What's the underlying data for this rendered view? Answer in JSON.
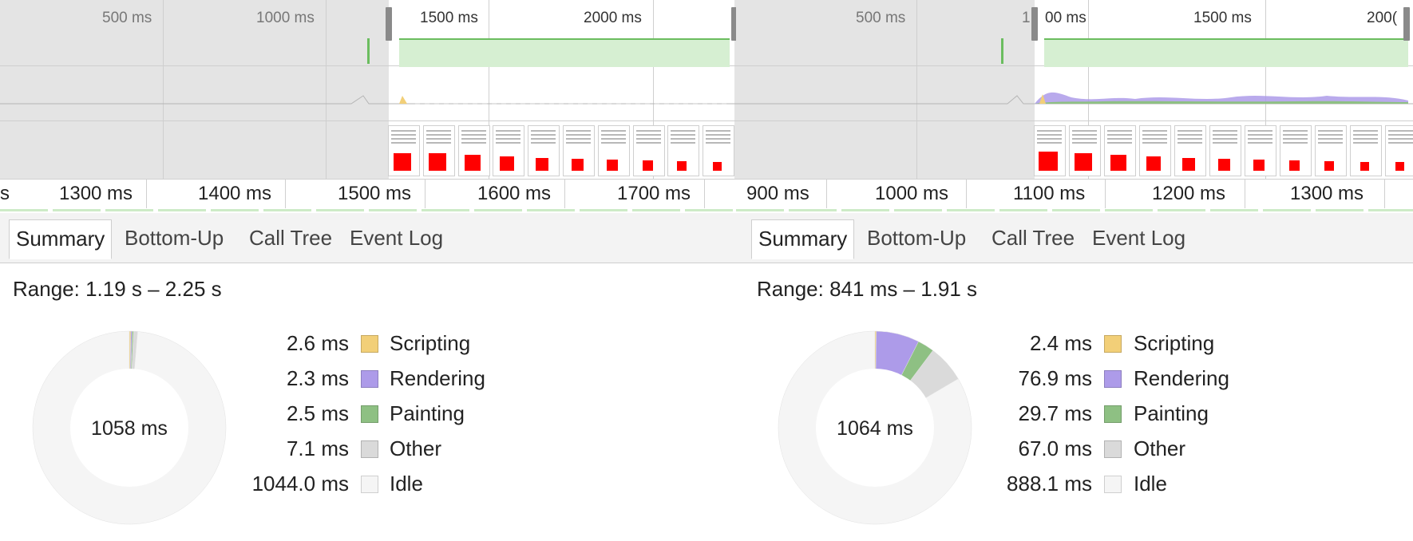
{
  "colors": {
    "scripting": "#f2cf78",
    "rendering": "#ad9be9",
    "painting": "#8ec083",
    "other": "#dadada",
    "idle": "#f5f5f5",
    "fps_green": "#6bbd5f",
    "frame_red": "#ff0000"
  },
  "left": {
    "overview_labels": [
      "500 ms",
      "1000 ms",
      "1500 ms",
      "2000 ms"
    ],
    "ruler_labels": [
      "s",
      "1300 ms",
      "1400 ms",
      "1500 ms",
      "1600 ms",
      "1700 ms"
    ],
    "tabs": [
      "Summary",
      "Bottom-Up",
      "Call Tree",
      "Event Log"
    ],
    "active_tab": "Summary",
    "range": "Range: 1.19 s – 2.25 s",
    "total": "1058 ms",
    "legend": [
      {
        "key": "scripting",
        "value": "2.6 ms",
        "label": "Scripting",
        "ms": 2.6
      },
      {
        "key": "rendering",
        "value": "2.3 ms",
        "label": "Rendering",
        "ms": 2.3
      },
      {
        "key": "painting",
        "value": "2.5 ms",
        "label": "Painting",
        "ms": 2.5
      },
      {
        "key": "other",
        "value": "7.1 ms",
        "label": "Other",
        "ms": 7.1
      },
      {
        "key": "idle",
        "value": "1044.0 ms",
        "label": "Idle",
        "ms": 1044.0
      }
    ]
  },
  "right": {
    "overview_labels": [
      "500 ms",
      "1",
      "00 ms",
      "1500 ms",
      "200("
    ],
    "ruler_labels": [
      "900 ms",
      "1000 ms",
      "1100 ms",
      "1200 ms",
      "1300 ms"
    ],
    "tabs": [
      "Summary",
      "Bottom-Up",
      "Call Tree",
      "Event Log"
    ],
    "active_tab": "Summary",
    "range": "Range: 841 ms – 1.91 s",
    "total": "1064 ms",
    "legend": [
      {
        "key": "scripting",
        "value": "2.4 ms",
        "label": "Scripting",
        "ms": 2.4
      },
      {
        "key": "rendering",
        "value": "76.9 ms",
        "label": "Rendering",
        "ms": 76.9
      },
      {
        "key": "painting",
        "value": "29.7 ms",
        "label": "Painting",
        "ms": 29.7
      },
      {
        "key": "other",
        "value": "67.0 ms",
        "label": "Other",
        "ms": 67.0
      },
      {
        "key": "idle",
        "value": "888.1 ms",
        "label": "Idle",
        "ms": 888.1
      }
    ]
  }
}
